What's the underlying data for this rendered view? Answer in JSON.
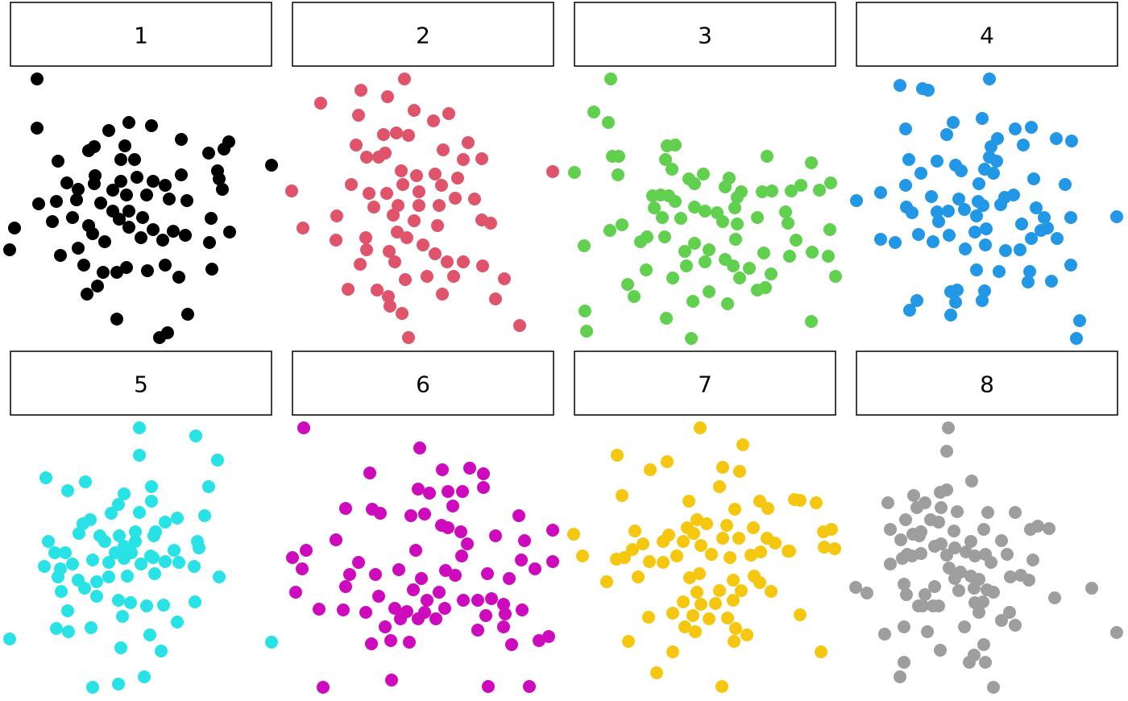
{
  "chart_data": [
    {
      "type": "scatter",
      "title": "1",
      "color": "#000000",
      "xlim": [
        0,
        325
      ],
      "ylim": [
        0,
        322
      ],
      "x": [
        34,
        34,
        6,
        0,
        325,
        272,
        266,
        247,
        258,
        264,
        260,
        250,
        273,
        248,
        251,
        221,
        196,
        186,
        133,
        96,
        109,
        63,
        85,
        92,
        116,
        133,
        145,
        171,
        193,
        210,
        218,
        203,
        190,
        163,
        178,
        148,
        165,
        136,
        118,
        103,
        98,
        78,
        53,
        36,
        58,
        83,
        113,
        128,
        148,
        145,
        170,
        198,
        220,
        213,
        193,
        178,
        158,
        138,
        106,
        105,
        85,
        71,
        128,
        148,
        176,
        123,
        105,
        98,
        143,
        138,
        155,
        213,
        60
      ],
      "values": [
        322,
        261,
        137,
        110,
        215,
        244,
        235,
        230,
        208,
        185,
        198,
        149,
        132,
        119,
        86,
        30,
        7,
        1,
        24,
        55,
        65,
        103,
        112,
        91,
        82,
        82,
        88,
        84,
        91,
        76,
        128,
        133,
        122,
        125,
        135,
        138,
        150,
        148,
        120,
        130,
        140,
        150,
        145,
        167,
        170,
        172,
        168,
        158,
        158,
        178,
        178,
        173,
        171,
        203,
        190,
        195,
        200,
        195,
        202,
        192,
        185,
        193,
        184,
        268,
        264,
        258,
        238,
        233,
        239,
        222,
        222,
        247,
        220
      ]
    },
    {
      "type": "scatter",
      "title": "2",
      "color": "#DF536B",
      "xlim": [
        0,
        325
      ],
      "ylim": [
        0,
        322
      ],
      "x": [
        140,
        86,
        36,
        119,
        152,
        195,
        176,
        83,
        114,
        130,
        145,
        219,
        80,
        116,
        93,
        108,
        188,
        213,
        236,
        324,
        0,
        74,
        96,
        136,
        155,
        178,
        206,
        186,
        138,
        158,
        118,
        102,
        132,
        158,
        183,
        203,
        227,
        56,
        126,
        152,
        181,
        236,
        247,
        14,
        55,
        92,
        131,
        143,
        163,
        121,
        93,
        128,
        178,
        193,
        213,
        237,
        85,
        141,
        168,
        201,
        264,
        70,
        120,
        187,
        253,
        122,
        137,
        283,
        145,
        106
      ],
      "values": [
        322,
        308,
        292,
        300,
        283,
        279,
        270,
        277,
        253,
        255,
        252,
        243,
        240,
        230,
        225,
        225,
        234,
        222,
        223,
        207,
        183,
        191,
        180,
        208,
        202,
        204,
        199,
        190,
        191,
        182,
        180,
        163,
        165,
        165,
        165,
        174,
        173,
        152,
        153,
        146,
        140,
        147,
        143,
        137,
        122,
        125,
        132,
        125,
        116,
        108,
        110,
        95,
        105,
        95,
        95,
        90,
        92,
        73,
        77,
        77,
        74,
        61,
        52,
        55,
        49,
        40,
        31,
        16,
        1,
        60
      ]
    },
    {
      "type": "scatter",
      "title": "3",
      "color": "#61D04F",
      "xlim": [
        0,
        325
      ],
      "ylim": [
        0,
        322
      ],
      "x": [
        46,
        25,
        43,
        48,
        56,
        1,
        55,
        116,
        126,
        114,
        122,
        240,
        295,
        143,
        161,
        150,
        193,
        188,
        319,
        282,
        270,
        305,
        246,
        234,
        208,
        203,
        98,
        108,
        118,
        100,
        126,
        150,
        163,
        178,
        200,
        185,
        203,
        228,
        263,
        266,
        110,
        133,
        60,
        45,
        318,
        276,
        13,
        83,
        91,
        113,
        150,
        168,
        201,
        138,
        188,
        236,
        296,
        316,
        268,
        140,
        163,
        198,
        218,
        90,
        123,
        206,
        245,
        325,
        67,
        238,
        228,
        168,
        75,
        148,
        191,
        14,
        16,
        115,
        295,
        146
      ],
      "values": [
        322,
        281,
        268,
        226,
        226,
        206,
        203,
        239,
        240,
        222,
        210,
        226,
        218,
        198,
        204,
        192,
        199,
        188,
        193,
        190,
        183,
        184,
        183,
        182,
        182,
        175,
        177,
        178,
        177,
        162,
        170,
        163,
        158,
        156,
        162,
        145,
        142,
        150,
        157,
        143,
        150,
        149,
        141,
        134,
        135,
        122,
        115,
        120,
        126,
        126,
        118,
        110,
        123,
        108,
        98,
        106,
        107,
        102,
        102,
        90,
        95,
        90,
        87,
        85,
        75,
        75,
        80,
        77,
        67,
        63,
        60,
        58,
        52,
        46,
        43,
        34,
        9,
        25,
        21,
        0
      ]
    },
    {
      "type": "scatter",
      "title": "4",
      "color": "#2297E6",
      "xlim": [
        0,
        325
      ],
      "ylim": [
        0,
        322
      ],
      "x": [
        166,
        55,
        83,
        90,
        121,
        157,
        62,
        113,
        198,
        218,
        249,
        268,
        208,
        176,
        168,
        166,
        175,
        66,
        101,
        124,
        131,
        81,
        160,
        171,
        153,
        221,
        260,
        62,
        31,
        1,
        94,
        128,
        152,
        180,
        196,
        185,
        224,
        63,
        70,
        101,
        115,
        135,
        158,
        103,
        150,
        234,
        267,
        324,
        206,
        238,
        230,
        162,
        148,
        116,
        78,
        96,
        31,
        49,
        161,
        136,
        204,
        218,
        250,
        186,
        267,
        150,
        178,
        216,
        243,
        214,
        118,
        126,
        160,
        76,
        124,
        157,
        67,
        118,
        278,
        274
      ],
      "values": [
        322,
        314,
        310,
        308,
        268,
        273,
        260,
        253,
        260,
        262,
        248,
        245,
        240,
        248,
        238,
        225,
        220,
        222,
        220,
        215,
        208,
        205,
        210,
        205,
        192,
        198,
        191,
        190,
        181,
        171,
        176,
        173,
        170,
        166,
        178,
        175,
        162,
        163,
        156,
        157,
        158,
        160,
        165,
        145,
        152,
        150,
        150,
        151,
        142,
        137,
        134,
        136,
        132,
        128,
        129,
        120,
        123,
        119,
        116,
        111,
        110,
        124,
        124,
        109,
        91,
        85,
        83,
        83,
        71,
        70,
        58,
        60,
        59,
        47,
        45,
        47,
        35,
        29,
        22,
        0
      ]
    },
    {
      "type": "scatter",
      "title": "5",
      "color": "#28E2E5",
      "xlim": [
        0,
        325
      ],
      "ylim": [
        0,
        322
      ],
      "x": [
        161,
        231,
        161,
        258,
        45,
        94,
        72,
        247,
        142,
        176,
        176,
        135,
        126,
        161,
        100,
        91,
        86,
        112,
        136,
        156,
        181,
        193,
        208,
        242,
        48,
        118,
        142,
        156,
        179,
        233,
        235,
        56,
        69,
        131,
        151,
        175,
        204,
        43,
        63,
        78,
        103,
        123,
        142,
        163,
        178,
        193,
        210,
        229,
        60,
        85,
        108,
        123,
        146,
        180,
        260,
        64,
        93,
        108,
        135,
        150,
        170,
        191,
        230,
        72,
        140,
        208,
        101,
        73,
        174,
        0,
        188,
        138,
        167,
        135,
        103,
        58,
        325
      ],
      "values": [
        322,
        312,
        288,
        282,
        260,
        255,
        244,
        249,
        240,
        249,
        231,
        227,
        216,
        217,
        208,
        203,
        191,
        188,
        188,
        193,
        193,
        205,
        210,
        213,
        181,
        181,
        175,
        181,
        188,
        181,
        173,
        167,
        167,
        167,
        167,
        163,
        170,
        150,
        147,
        153,
        158,
        155,
        160,
        153,
        161,
        156,
        155,
        150,
        137,
        133,
        131,
        137,
        138,
        141,
        137,
        119,
        123,
        113,
        108,
        105,
        101,
        102,
        106,
        95,
        88,
        81,
        74,
        69,
        65,
        60,
        45,
        49,
        13,
        4,
        0,
        73,
        56
      ]
    },
    {
      "type": "scatter",
      "title": "6",
      "color": "#CD0BBC",
      "xlim": [
        0,
        325
      ],
      "ylim": [
        0,
        322
      ],
      "x": [
        15,
        159,
        97,
        187,
        221,
        238,
        238,
        157,
        171,
        194,
        212,
        200,
        67,
        100,
        110,
        148,
        165,
        282,
        186,
        194,
        210,
        55,
        218,
        253,
        289,
        324,
        18,
        1,
        83,
        154,
        211,
        285,
        324,
        13,
        72,
        104,
        133,
        161,
        191,
        203,
        243,
        302,
        270,
        67,
        5,
        151,
        183,
        108,
        168,
        213,
        231,
        248,
        263,
        34,
        64,
        92,
        128,
        143,
        165,
        190,
        241,
        286,
        265,
        116,
        135,
        157,
        179,
        231,
        263,
        99,
        123,
        146,
        273,
        307,
        319,
        124,
        39,
        244,
        295
      ],
      "values": [
        322,
        297,
        266,
        270,
        272,
        265,
        248,
        246,
        241,
        243,
        243,
        225,
        222,
        221,
        216,
        213,
        215,
        213,
        201,
        198,
        193,
        183,
        178,
        188,
        182,
        195,
        170,
        161,
        155,
        170,
        163,
        158,
        156,
        147,
        140,
        140,
        146,
        135,
        145,
        139,
        141,
        147,
        135,
        125,
        118,
        121,
        118,
        113,
        108,
        108,
        108,
        110,
        103,
        97,
        96,
        93,
        98,
        94,
        93,
        98,
        89,
        96,
        91,
        75,
        85,
        85,
        85,
        71,
        75,
        54,
        58,
        56,
        53,
        58,
        63,
        9,
        0,
        1,
        1
      ]
    },
    {
      "type": "scatter",
      "title": "7",
      "color": "#F5C710",
      "xlim": [
        0,
        325
      ],
      "ylim": [
        0,
        322
      ],
      "x": [
        157,
        210,
        54,
        116,
        95,
        185,
        206,
        181,
        60,
        143,
        274,
        281,
        301,
        231,
        241,
        200,
        153,
        165,
        141,
        190,
        223,
        76,
        118,
        149,
        240,
        310,
        320,
        86,
        111,
        136,
        158,
        185,
        205,
        250,
        266,
        311,
        324,
        73,
        63,
        94,
        111,
        128,
        171,
        194,
        220,
        232,
        11,
        53,
        0,
        80,
        144,
        156,
        198,
        224,
        231,
        153,
        181,
        208,
        245,
        41,
        136,
        158,
        176,
        198,
        268,
        93,
        123,
        148,
        168,
        191,
        281,
        138,
        151,
        201,
        215,
        68,
        199,
        123,
        307,
        103,
        184
      ],
      "values": [
        322,
        301,
        288,
        280,
        270,
        273,
        268,
        249,
        238,
        231,
        233,
        232,
        229,
        231,
        222,
        221,
        208,
        203,
        198,
        201,
        198,
        194,
        189,
        191,
        185,
        193,
        196,
        178,
        181,
        181,
        176,
        185,
        185,
        179,
        169,
        174,
        172,
        171,
        161,
        156,
        155,
        163,
        165,
        161,
        164,
        168,
        163,
        159,
        190,
        137,
        136,
        141,
        133,
        138,
        130,
        118,
        120,
        120,
        119,
        131,
        106,
        103,
        104,
        108,
        169,
        87,
        92,
        89,
        85,
        86,
        90,
        75,
        69,
        73,
        65,
        57,
        57,
        44,
        44,
        18,
        1
      ]
    },
    {
      "type": "scatter",
      "title": "8",
      "color": "#9E9E9E",
      "xlim": [
        0,
        325
      ],
      "ylim": [
        0,
        322
      ],
      "x": [
        115,
        113,
        144,
        72,
        105,
        113,
        40,
        86,
        76,
        106,
        62,
        93,
        126,
        164,
        198,
        43,
        71,
        81,
        103,
        122,
        159,
        217,
        226,
        240,
        56,
        79,
        98,
        106,
        123,
        113,
        143,
        181,
        81,
        64,
        58,
        43,
        70,
        137,
        148,
        161,
        168,
        188,
        220,
        116,
        130,
        143,
        153,
        123,
        98,
        60,
        0,
        14,
        63,
        86,
        78,
        96,
        103,
        128,
        147,
        148,
        163,
        192,
        205,
        215,
        171,
        158,
        153,
        191,
        181,
        247,
        293,
        324,
        36,
        60,
        89,
        135,
        198,
        105,
        159,
        147,
        141,
        60,
        161,
        55,
        171,
        83
      ],
      "values": [
        322,
        293,
        256,
        238,
        242,
        245,
        229,
        229,
        223,
        223,
        208,
        208,
        218,
        217,
        217,
        196,
        190,
        193,
        205,
        194,
        196,
        196,
        200,
        197,
        183,
        188,
        175,
        178,
        173,
        164,
        181,
        182,
        166,
        165,
        160,
        153,
        163,
        168,
        163,
        165,
        155,
        165,
        158,
        148,
        143,
        138,
        134,
        135,
        125,
        128,
        124,
        117,
        115,
        115,
        101,
        101,
        101,
        120,
        123,
        105,
        121,
        137,
        139,
        133,
        118,
        106,
        93,
        93,
        83,
        111,
        123,
        68,
        66,
        75,
        69,
        75,
        77,
        46,
        53,
        40,
        31,
        31,
        31,
        13,
        0,
        101
      ]
    }
  ]
}
